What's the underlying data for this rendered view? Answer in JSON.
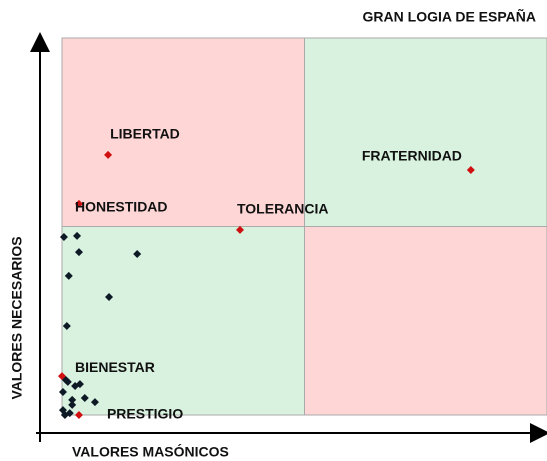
{
  "chart_data": {
    "type": "scatter",
    "title": "GRAN LOGIA DE ESPAÑA",
    "x_label": "VALORES MASÓNICOS",
    "y_label": "VALORES NECESARIOS",
    "xlim": [
      0,
      10
    ],
    "ylim": [
      0,
      10
    ],
    "quadrant_colors": {
      "top_left": "#ffd6d6",
      "top_right": "#d8f2df",
      "bottom_left": "#d8f2df",
      "bottom_right": "#ffd6d6"
    },
    "series": [
      {
        "color": "#d01010",
        "labels": [
          "LIBERTAD",
          "FRATERNIDAD",
          "TOLERANCIA",
          "HONESTIDAD",
          "BIENESTAR",
          "PRESTIGIO"
        ],
        "x": [
          0.95,
          8.43,
          3.67,
          0.35,
          0,
          0.35
        ],
        "values": [
          6.9,
          6.5,
          4.91,
          5.6,
          1.03,
          0
        ]
      },
      {
        "color": "#0d1a26",
        "x": [
          0.04,
          0.31,
          0.35,
          1.55,
          0.14,
          0.97,
          0.1,
          0.08,
          0.12,
          0.27,
          0.37,
          0.02,
          0.21,
          0.47,
          0.68,
          0.21,
          0.02,
          0.06,
          0.16
        ],
        "values": [
          4.72,
          4.75,
          4.32,
          4.27,
          3.69,
          3.13,
          2.36,
          0.93,
          0.88,
          0.77,
          0.82,
          0.61,
          0.4,
          0.45,
          0.34,
          0.27,
          0.13,
          0,
          0.05
        ]
      }
    ]
  }
}
